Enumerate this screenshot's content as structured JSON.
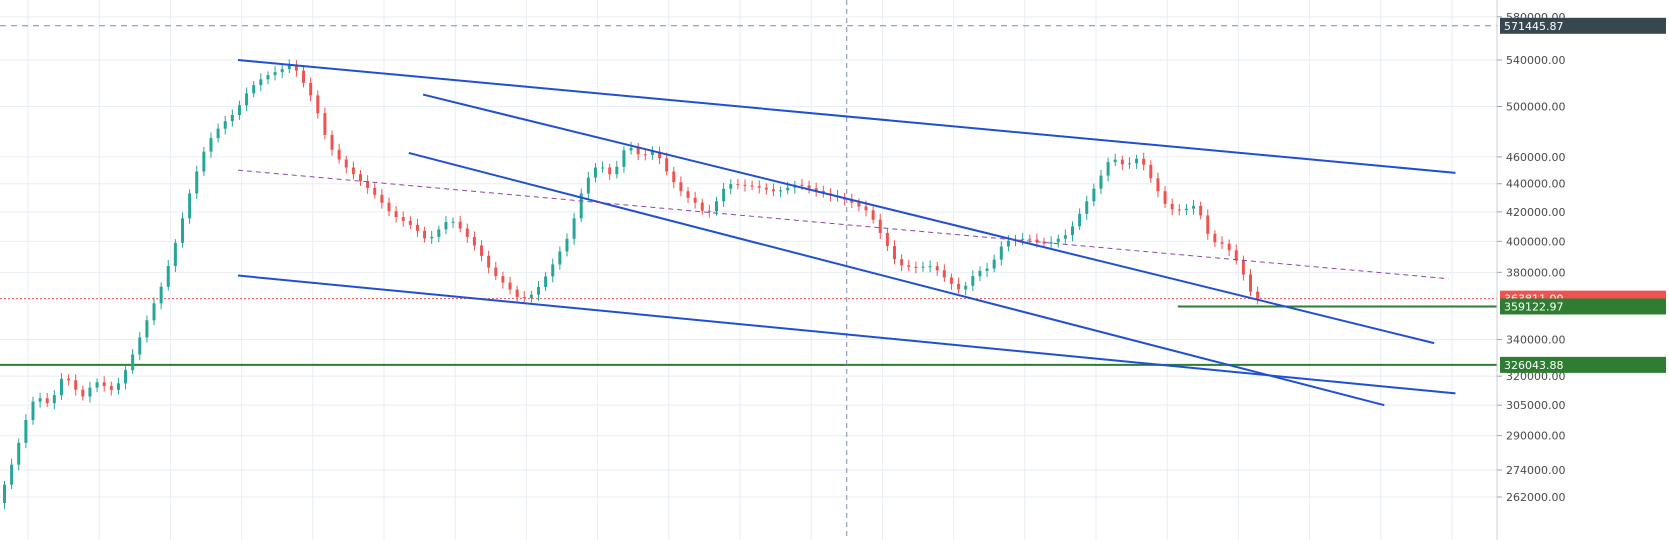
{
  "chart_data": {
    "type": "candlestick",
    "scale": "log",
    "grid": true,
    "ylim": [
      258000,
      590000
    ],
    "y_ticks": [
      {
        "value": 580000,
        "label": "580000.00"
      },
      {
        "value": 540000,
        "label": "540000.00"
      },
      {
        "value": 500000,
        "label": "500000.00"
      },
      {
        "value": 460000,
        "label": "460000.00"
      },
      {
        "value": 440000,
        "label": "440000.00"
      },
      {
        "value": 420000,
        "label": "420000.00"
      },
      {
        "value": 400000,
        "label": "400000.00"
      },
      {
        "value": 380000,
        "label": "380000.00"
      },
      {
        "value": 340000,
        "label": "340000.00"
      },
      {
        "value": 320000,
        "label": "320000.00"
      },
      {
        "value": 305000,
        "label": "305000.00"
      },
      {
        "value": 290000,
        "label": "290000.00"
      },
      {
        "value": 274000,
        "label": "274000.00"
      },
      {
        "value": 262000,
        "label": "262000.00"
      }
    ],
    "price_badges": [
      {
        "value": 571445.87,
        "label": "571445.87",
        "color": "#37474f"
      },
      {
        "value": 363811.0,
        "label": "363811.00",
        "color": "#ef5350"
      },
      {
        "value": 359122.97,
        "label": "359122.97",
        "color": "#2e7d32"
      },
      {
        "value": 326043.88,
        "label": "326043.88",
        "color": "#2e7d32"
      }
    ],
    "horizontal_lines": [
      {
        "value": 571445.87,
        "style": "dashed",
        "color": "#7a8aa8"
      },
      {
        "value": 363811.0,
        "style": "dotted",
        "color": "#ef5350"
      },
      {
        "value": 326043.88,
        "style": "solid",
        "color": "#2e7d32",
        "from": "left-edge"
      },
      {
        "value": 359122.97,
        "style": "solid",
        "color": "#2e7d32",
        "from_bar": 165
      }
    ],
    "path": [
      [
        0,
        262000
      ],
      [
        2,
        280000
      ],
      [
        4,
        302000
      ],
      [
        5,
        310000
      ],
      [
        7,
        305000
      ],
      [
        9,
        322000
      ],
      [
        10,
        315000
      ],
      [
        12,
        308000
      ],
      [
        13,
        318000
      ],
      [
        16,
        312000
      ],
      [
        18,
        326000
      ],
      [
        20,
        345000
      ],
      [
        23,
        375000
      ],
      [
        25,
        405000
      ],
      [
        27,
        440000
      ],
      [
        29,
        470000
      ],
      [
        31,
        485000
      ],
      [
        33,
        495000
      ],
      [
        35,
        515000
      ],
      [
        37,
        525000
      ],
      [
        40,
        533000
      ],
      [
        41,
        537000
      ],
      [
        44,
        505000
      ],
      [
        46,
        470000
      ],
      [
        48,
        455000
      ],
      [
        50,
        445000
      ],
      [
        53,
        430000
      ],
      [
        55,
        418000
      ],
      [
        58,
        410000
      ],
      [
        60,
        400000
      ],
      [
        63,
        415000
      ],
      [
        64,
        412000
      ],
      [
        67,
        395000
      ],
      [
        69,
        380000
      ],
      [
        71,
        372000
      ],
      [
        73,
        363000
      ],
      [
        75,
        367000
      ],
      [
        77,
        380000
      ],
      [
        80,
        405000
      ],
      [
        82,
        440000
      ],
      [
        84,
        455000
      ],
      [
        86,
        445000
      ],
      [
        88,
        470000
      ],
      [
        90,
        460000
      ],
      [
        92,
        465000
      ],
      [
        94,
        445000
      ],
      [
        96,
        432000
      ],
      [
        98,
        425000
      ],
      [
        99,
        418000
      ],
      [
        100,
        422000
      ],
      [
        102,
        440000
      ],
      [
        106,
        438000
      ],
      [
        109,
        434000
      ],
      [
        112,
        440000
      ],
      [
        115,
        434000
      ],
      [
        119,
        428000
      ],
      [
        122,
        420000
      ],
      [
        124,
        402000
      ],
      [
        126,
        385000
      ],
      [
        128,
        383000
      ],
      [
        131,
        384000
      ],
      [
        133,
        375000
      ],
      [
        135,
        368000
      ],
      [
        137,
        380000
      ],
      [
        139,
        383000
      ],
      [
        141,
        400000
      ],
      [
        144,
        402000
      ],
      [
        147,
        398000
      ],
      [
        150,
        405000
      ],
      [
        152,
        422000
      ],
      [
        154,
        440000
      ],
      [
        156,
        460000
      ],
      [
        158,
        453000
      ],
      [
        160,
        460000
      ],
      [
        162,
        440000
      ],
      [
        164,
        422000
      ],
      [
        166,
        421000
      ],
      [
        168,
        425000
      ],
      [
        170,
        400000
      ],
      [
        172,
        398000
      ],
      [
        174,
        385000
      ],
      [
        176,
        363811
      ]
    ]
  },
  "annotations": {
    "trendlines": [
      {
        "from": [
          33,
          540000
        ],
        "to": [
          204,
          448000
        ],
        "color": "#1f4fd6",
        "width": 2
      },
      {
        "from": [
          33,
          378000
        ],
        "to": [
          204,
          311000
        ],
        "color": "#1f4fd6",
        "width": 2
      },
      {
        "from": [
          59,
          510000
        ],
        "to": [
          201,
          338000
        ],
        "color": "#1f4fd6",
        "width": 2
      },
      {
        "from": [
          57,
          463000
        ],
        "to": [
          194,
          305000
        ],
        "color": "#1f4fd6",
        "width": 2
      },
      {
        "from": [
          33,
          450000
        ],
        "to": [
          203,
          376000
        ],
        "color": "#8e44ad",
        "width": 1,
        "dash": "5,4"
      }
    ],
    "crosshair_bar": 118.5
  },
  "colors": {
    "up": "#26a69a",
    "down": "#ef5350",
    "grid": "#e7eef5",
    "axis_text": "#4a4a4a"
  }
}
